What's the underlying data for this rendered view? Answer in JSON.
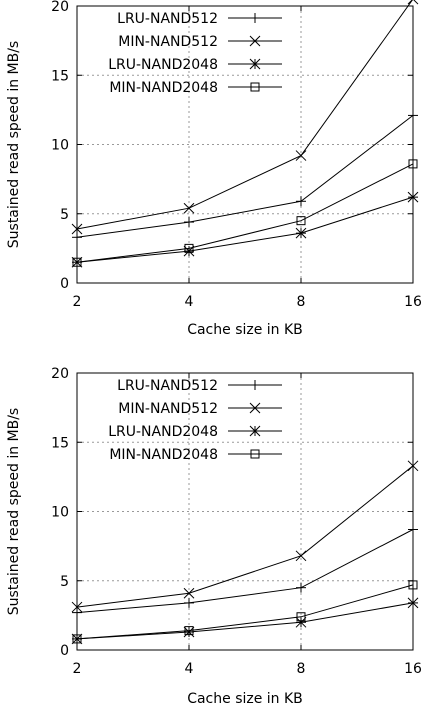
{
  "chart_data": [
    {
      "type": "line",
      "xlabel": "Cache size in KB",
      "ylabel": "Sustained read speed in MB/s",
      "x": [
        2,
        4,
        8,
        16
      ],
      "xscale": "log2",
      "xticks": [
        "2",
        "4",
        "8",
        "16"
      ],
      "yticks": [
        "0",
        "5",
        "10",
        "15",
        "20"
      ],
      "ylim": [
        0,
        20
      ],
      "grid": true,
      "legend_position": "top-left",
      "series": [
        {
          "name": "LRU-NAND512",
          "marker": "plus",
          "values": [
            3.3,
            4.4,
            5.9,
            12.1
          ]
        },
        {
          "name": "MIN-NAND512",
          "marker": "cross",
          "values": [
            3.9,
            5.4,
            9.2,
            20.5
          ]
        },
        {
          "name": "LRU-NAND2048",
          "marker": "star",
          "values": [
            1.5,
            2.3,
            3.6,
            6.2
          ]
        },
        {
          "name": "MIN-NAND2048",
          "marker": "square",
          "values": [
            1.5,
            2.5,
            4.5,
            8.6
          ]
        }
      ]
    },
    {
      "type": "line",
      "xlabel": "Cache size in KB",
      "ylabel": "Sustained read speed in MB/s",
      "x": [
        2,
        4,
        8,
        16
      ],
      "xscale": "log2",
      "xticks": [
        "2",
        "4",
        "8",
        "16"
      ],
      "yticks": [
        "0",
        "5",
        "10",
        "15",
        "20"
      ],
      "ylim": [
        0,
        20
      ],
      "grid": true,
      "legend_position": "top-left",
      "series": [
        {
          "name": "LRU-NAND512",
          "marker": "plus",
          "values": [
            2.7,
            3.4,
            4.5,
            8.7
          ]
        },
        {
          "name": "MIN-NAND512",
          "marker": "cross",
          "values": [
            3.1,
            4.1,
            6.8,
            13.3
          ]
        },
        {
          "name": "LRU-NAND2048",
          "marker": "star",
          "values": [
            0.8,
            1.3,
            2.0,
            3.4
          ]
        },
        {
          "name": "MIN-NAND2048",
          "marker": "square",
          "values": [
            0.8,
            1.4,
            2.4,
            4.7
          ]
        }
      ]
    }
  ]
}
